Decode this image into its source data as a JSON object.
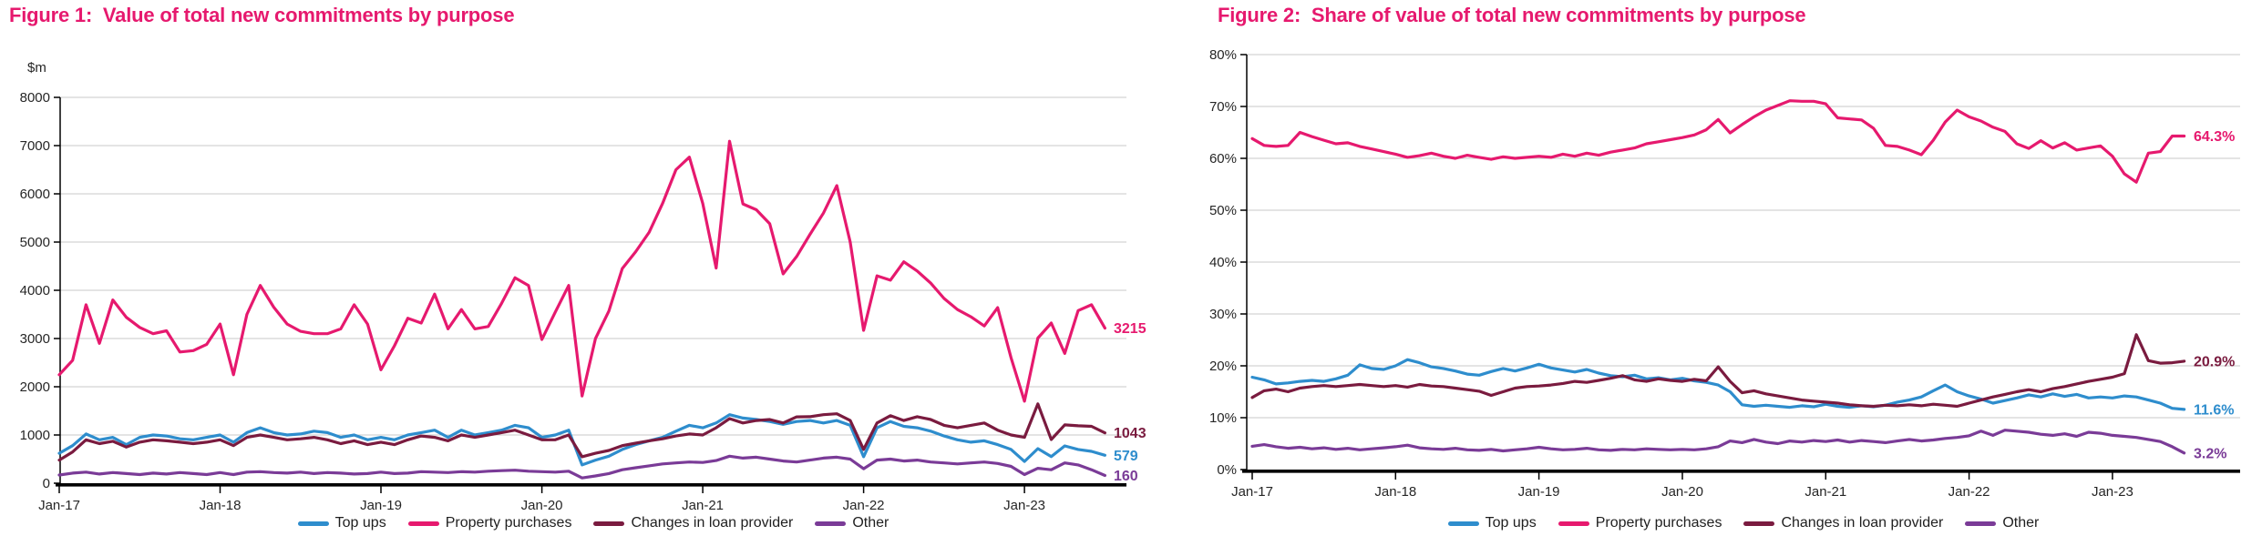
{
  "chart_data": [
    {
      "type": "line",
      "title": "Figure 1:  Value of total new commitments by purpose",
      "ylabel": "$m",
      "ylim": [
        0,
        8000
      ],
      "ytick_step": 1000,
      "y_tick_labels": [
        "0",
        "1000",
        "2000",
        "3000",
        "4000",
        "5000",
        "6000",
        "7000",
        "8000"
      ],
      "x_tick_labels": [
        "Jan-17",
        "Jan-18",
        "Jan-19",
        "Jan-20",
        "Jan-21",
        "Jan-22",
        "Jan-23"
      ],
      "x_frequency": "monthly",
      "grid": true,
      "legend_position": "bottom",
      "series": [
        {
          "name": "Top ups",
          "color": "#2e8dcd",
          "end_label": "579",
          "values": [
            620,
            780,
            1020,
            900,
            950,
            800,
            950,
            1000,
            980,
            920,
            900,
            950,
            1000,
            850,
            1050,
            1150,
            1050,
            1000,
            1020,
            1080,
            1050,
            950,
            1000,
            900,
            950,
            900,
            1000,
            1050,
            1100,
            950,
            1100,
            1000,
            1050,
            1100,
            1200,
            1150,
            950,
            1000,
            1100,
            380,
            480,
            560,
            700,
            800,
            880,
            950,
            1080,
            1200,
            1150,
            1250,
            1420,
            1350,
            1320,
            1280,
            1220,
            1280,
            1300,
            1250,
            1300,
            1200,
            550,
            1150,
            1280,
            1180,
            1150,
            1080,
            980,
            900,
            850,
            880,
            800,
            700,
            450,
            717,
            553,
            774,
            700,
            660,
            579
          ]
        },
        {
          "name": "Property purchases",
          "color": "#e6196e",
          "end_label": "3215",
          "values": [
            2250,
            2550,
            3700,
            2900,
            3800,
            3440,
            3230,
            3100,
            3160,
            2720,
            2750,
            2880,
            3300,
            2250,
            3500,
            4100,
            3650,
            3300,
            3150,
            3100,
            3100,
            3200,
            3700,
            3300,
            2350,
            2850,
            3420,
            3320,
            3920,
            3200,
            3600,
            3200,
            3250,
            3730,
            4260,
            4100,
            2980,
            3550,
            4100,
            1810,
            3000,
            3570,
            4450,
            4800,
            5200,
            5800,
            6500,
            6760,
            5800,
            4460,
            7090,
            5790,
            5670,
            5380,
            4340,
            4700,
            5160,
            5600,
            6170,
            5000,
            3170,
            4300,
            4210,
            4590,
            4400,
            4150,
            3830,
            3600,
            3450,
            3260,
            3640,
            2600,
            1700,
            3010,
            3320,
            2690,
            3580,
            3700,
            3215
          ]
        },
        {
          "name": "Changes in loan provider",
          "color": "#7a1b3f",
          "end_label": "1043",
          "values": [
            480,
            650,
            900,
            820,
            870,
            750,
            850,
            900,
            880,
            850,
            820,
            850,
            900,
            780,
            950,
            1000,
            950,
            900,
            920,
            950,
            900,
            820,
            880,
            800,
            850,
            800,
            900,
            980,
            950,
            880,
            1000,
            950,
            1000,
            1050,
            1100,
            1000,
            900,
            900,
            1000,
            550,
            620,
            680,
            780,
            830,
            880,
            920,
            980,
            1020,
            1000,
            1150,
            1340,
            1250,
            1300,
            1320,
            1250,
            1375,
            1380,
            1420,
            1440,
            1300,
            700,
            1250,
            1400,
            1300,
            1380,
            1320,
            1200,
            1150,
            1200,
            1250,
            1100,
            1000,
            950,
            1645,
            905,
            1210,
            1190,
            1180,
            1043
          ]
        },
        {
          "name": "Other",
          "color": "#7a3b97",
          "end_label": "160",
          "values": [
            170,
            210,
            230,
            190,
            220,
            200,
            180,
            210,
            190,
            220,
            200,
            180,
            220,
            180,
            230,
            240,
            220,
            210,
            230,
            200,
            220,
            210,
            190,
            200,
            230,
            200,
            210,
            240,
            230,
            220,
            240,
            230,
            250,
            260,
            270,
            250,
            240,
            230,
            250,
            110,
            150,
            200,
            280,
            320,
            360,
            400,
            420,
            440,
            430,
            470,
            560,
            520,
            540,
            500,
            460,
            440,
            480,
            520,
            540,
            500,
            300,
            480,
            500,
            460,
            480,
            440,
            420,
            400,
            420,
            440,
            410,
            350,
            180,
            310,
            280,
            420,
            380,
            280,
            160
          ]
        }
      ]
    },
    {
      "type": "line",
      "title": "Figure 2:  Share of value of total new commitments by purpose",
      "ylabel": "",
      "ylim": [
        0,
        80
      ],
      "ytick_step": 10,
      "y_tick_labels": [
        "0%",
        "10%",
        "20%",
        "30%",
        "40%",
        "50%",
        "60%",
        "70%",
        "80%"
      ],
      "x_tick_labels": [
        "Jan-17",
        "Jan-18",
        "Jan-19",
        "Jan-20",
        "Jan-21",
        "Jan-22",
        "Jan-23"
      ],
      "x_frequency": "monthly",
      "grid": true,
      "legend_position": "bottom",
      "series": [
        {
          "name": "Top ups",
          "color": "#2e8dcd",
          "end_label": "11.6%",
          "values": [
            17.8,
            17.3,
            16.5,
            16.7,
            17.0,
            17.2,
            17.0,
            17.5,
            18.2,
            20.2,
            19.5,
            19.3,
            20.0,
            21.2,
            20.6,
            19.8,
            19.5,
            19.0,
            18.4,
            18.2,
            18.9,
            19.5,
            19.0,
            19.6,
            20.3,
            19.6,
            19.2,
            18.8,
            19.3,
            18.6,
            18.1,
            17.9,
            18.2,
            17.5,
            17.7,
            17.3,
            17.6,
            17.1,
            16.8,
            16.3,
            15.0,
            12.5,
            12.2,
            12.4,
            12.2,
            12.0,
            12.3,
            12.1,
            12.6,
            12.2,
            12.0,
            12.3,
            12.1,
            12.4,
            13.0,
            13.4,
            14.0,
            15.2,
            16.3,
            15.0,
            14.2,
            13.6,
            12.8,
            13.3,
            13.8,
            14.4,
            14.0,
            14.6,
            14.1,
            14.5,
            13.8,
            14.0,
            13.8,
            14.2,
            14.0,
            13.4,
            12.8,
            11.8,
            11.6
          ]
        },
        {
          "name": "Property purchases",
          "color": "#e6196e",
          "end_label": "64.3%",
          "values": [
            63.8,
            62.5,
            62.3,
            62.5,
            65.0,
            64.2,
            63.5,
            62.8,
            63.0,
            62.3,
            61.8,
            61.3,
            60.8,
            60.2,
            60.5,
            61.0,
            60.4,
            60.0,
            60.6,
            60.2,
            59.8,
            60.3,
            60.0,
            60.2,
            60.4,
            60.2,
            60.8,
            60.4,
            61.0,
            60.6,
            61.2,
            61.6,
            62.0,
            62.8,
            63.2,
            63.6,
            64.0,
            64.5,
            65.5,
            67.5,
            64.9,
            66.5,
            68.0,
            69.3,
            70.2,
            71.1,
            71.0,
            71.0,
            70.5,
            67.8,
            67.6,
            67.4,
            65.8,
            62.5,
            62.3,
            61.6,
            60.7,
            63.5,
            67.0,
            69.3,
            68.0,
            67.2,
            66.0,
            65.2,
            62.8,
            61.9,
            63.4,
            62.0,
            63.0,
            61.6,
            62.0,
            62.4,
            60.4,
            57.0,
            55.4,
            61.0,
            61.3,
            64.3,
            64.3
          ]
        },
        {
          "name": "Changes in loan provider",
          "color": "#7a1b3f",
          "end_label": "20.9%",
          "values": [
            13.9,
            15.2,
            15.5,
            15.0,
            15.7,
            16.0,
            16.2,
            16.0,
            16.2,
            16.4,
            16.2,
            16.0,
            16.2,
            15.9,
            16.4,
            16.1,
            16.0,
            15.7,
            15.4,
            15.1,
            14.3,
            15.0,
            15.7,
            16.0,
            16.1,
            16.3,
            16.6,
            17.0,
            16.8,
            17.2,
            17.6,
            18.1,
            17.3,
            17.0,
            17.5,
            17.2,
            17.0,
            17.4,
            17.1,
            19.8,
            17.0,
            14.8,
            15.2,
            14.6,
            14.2,
            13.8,
            13.4,
            13.2,
            13.0,
            12.8,
            12.5,
            12.3,
            12.2,
            12.4,
            12.3,
            12.5,
            12.3,
            12.6,
            12.4,
            12.2,
            12.8,
            13.4,
            14.0,
            14.5,
            15.0,
            15.4,
            15.0,
            15.6,
            16.0,
            16.5,
            17.0,
            17.4,
            17.8,
            18.5,
            26.0,
            21.0,
            20.5,
            20.6,
            20.9
          ]
        },
        {
          "name": "Other",
          "color": "#7a3b97",
          "end_label": "3.2%",
          "values": [
            4.5,
            4.8,
            4.4,
            4.1,
            4.3,
            4.0,
            4.2,
            3.9,
            4.1,
            3.8,
            4.0,
            4.2,
            4.4,
            4.7,
            4.2,
            4.0,
            3.9,
            4.1,
            3.8,
            3.7,
            3.9,
            3.6,
            3.8,
            4.0,
            4.3,
            4.0,
            3.8,
            3.9,
            4.1,
            3.8,
            3.7,
            3.9,
            3.8,
            4.0,
            3.9,
            3.8,
            3.9,
            3.8,
            4.0,
            4.4,
            5.5,
            5.2,
            5.8,
            5.3,
            5.0,
            5.5,
            5.3,
            5.6,
            5.4,
            5.7,
            5.3,
            5.6,
            5.4,
            5.2,
            5.5,
            5.8,
            5.5,
            5.7,
            6.0,
            6.2,
            6.5,
            7.4,
            6.6,
            7.6,
            7.4,
            7.2,
            6.8,
            6.6,
            6.9,
            6.4,
            7.2,
            7.0,
            6.6,
            6.4,
            6.2,
            5.8,
            5.4,
            4.4,
            3.2
          ]
        }
      ]
    }
  ],
  "colors": {
    "accent_pink": "#e6196e",
    "gridline": "#c9c9c9",
    "axis": "#000000",
    "tick_text": "#262626"
  }
}
